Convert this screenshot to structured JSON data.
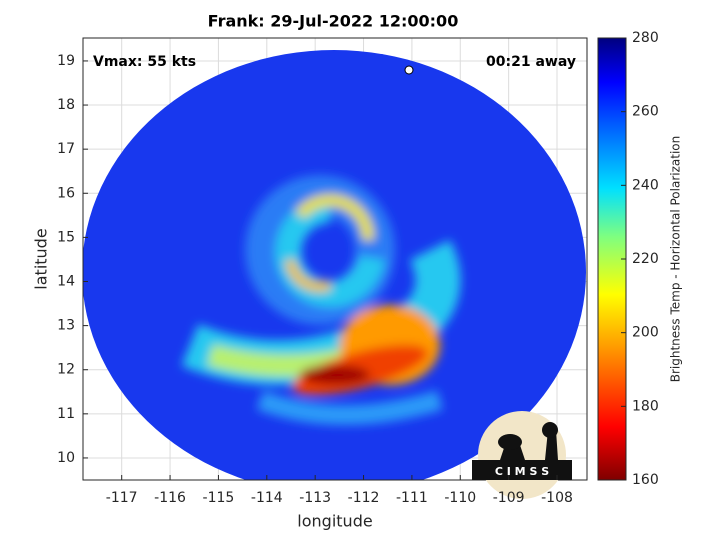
{
  "chart_data": {
    "type": "map",
    "title": "Frank: 29-Jul-2022 12:00:00",
    "xlabel": "longitude",
    "ylabel": "latitude",
    "xlim": [
      -117.8,
      -107.38
    ],
    "ylim": [
      9.5,
      19.52
    ],
    "xticks": [
      -117,
      -116,
      -115,
      -114,
      -113,
      -112,
      -111,
      -110,
      -109,
      -108
    ],
    "yticks": [
      10,
      11,
      12,
      13,
      14,
      15,
      16,
      17,
      18,
      19
    ],
    "grid": true,
    "annotations": [
      "Vmax: 55 kts",
      "00:21 away"
    ],
    "logo": "C I M S S",
    "colorbar": {
      "label": "Brightness Temp - Horizontal Polarization",
      "lim": [
        160,
        280
      ],
      "ticks": [
        160,
        180,
        200,
        220,
        240,
        260,
        280
      ]
    }
  }
}
